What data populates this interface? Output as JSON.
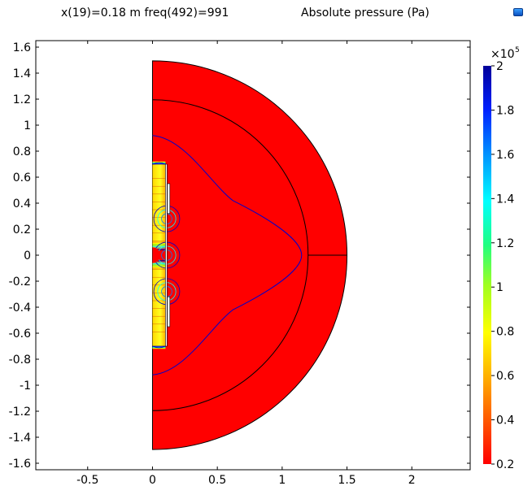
{
  "header": {
    "subtitle": "x(19)=0.18 m freq(492)=991",
    "title": "Absolute pressure (Pa)"
  },
  "chart_data": {
    "type": "heatmap",
    "title": "Absolute pressure (Pa)",
    "subtitle": "x(19)=0.18 m freq(492)=991",
    "xlim": [
      -0.9,
      2.45
    ],
    "ylim": [
      -1.65,
      1.65
    ],
    "x_ticks": [
      -0.5,
      0,
      0.5,
      1,
      1.5,
      2
    ],
    "x_tick_labels": [
      "-0.5",
      "0",
      "0.5",
      "1",
      "1.5",
      "2"
    ],
    "y_ticks": [
      1.6,
      1.4,
      1.2,
      1,
      0.8,
      0.6,
      0.4,
      0.2,
      0,
      -0.2,
      -0.4,
      -0.6,
      -0.8,
      -1,
      -1.2,
      -1.4,
      -1.6
    ],
    "y_tick_labels": [
      "1.6",
      "1.4",
      "1.2",
      "1",
      "0.8",
      "0.6",
      "0.4",
      "0.2",
      "0",
      "-0.2",
      "-0.4",
      "-0.6",
      "-0.8",
      "-1",
      "-1.2",
      "-1.4",
      "-1.6"
    ],
    "colorbar": {
      "multiplier": "×10",
      "exponent": "5",
      "range": [
        0.2,
        2
      ],
      "ticks": [
        2,
        1.8,
        1.6,
        1.4,
        1.2,
        1,
        0.8,
        0.6,
        0.4,
        0.2
      ],
      "tick_labels": [
        "2",
        "1.8",
        "1.6",
        "1.4",
        "1.2",
        "1",
        "0.8",
        "0.6",
        "0.4",
        "0.2"
      ],
      "colormap": [
        "#ff0000",
        "#ff7f00",
        "#ffff00",
        "#7fff00",
        "#00ff7f",
        "#00ffff",
        "#007fff",
        "#0000ff",
        "#00008b"
      ]
    },
    "domain": {
      "outer_radius": 1.5,
      "inner_radius": 1.2,
      "fill_color": "#ff0000",
      "outline_color": "#000000",
      "contour_color": "#0000cc"
    },
    "grid": false
  }
}
